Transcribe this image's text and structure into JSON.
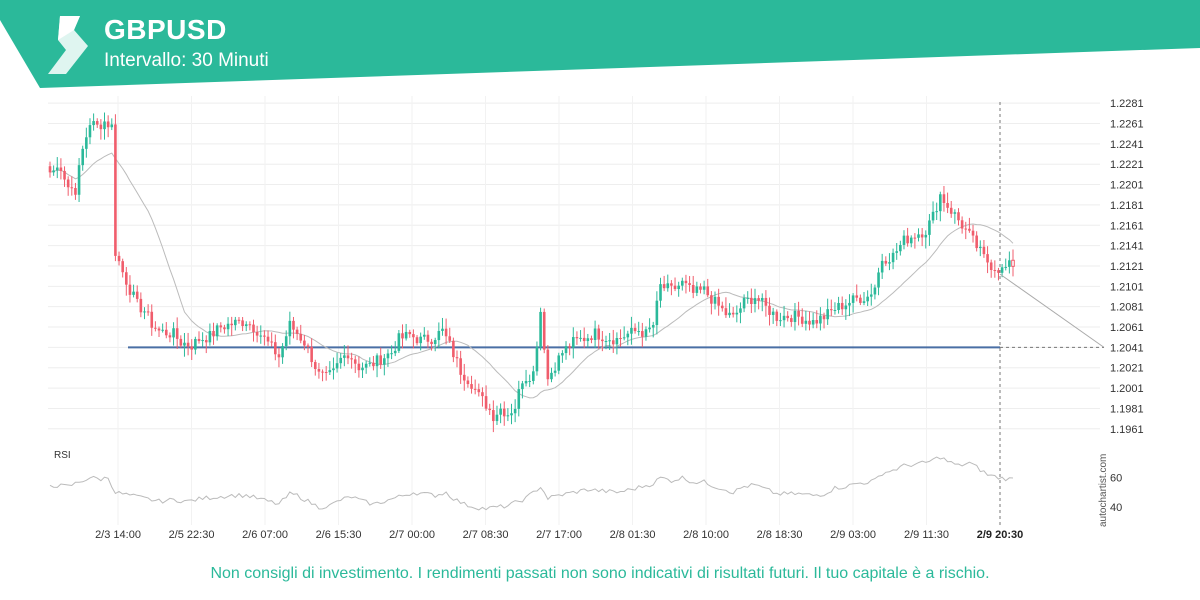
{
  "header": {
    "symbol": "GBPUSD",
    "interval": "Intervallo: 30 Minuti",
    "accent": "#2bb99a"
  },
  "disclaimer": "Non consigli di investimento. I rendimenti passati non sono indicativi di risultati futuri. Il tuo capitale è a rischio.",
  "watermark": "autochartist.com",
  "colors": {
    "up": "#2bb99a",
    "down": "#f05d6c",
    "level": "#4a6fa5",
    "ma": "#bbbbbb",
    "rsi": "#bbbbbb"
  },
  "chart_data": {
    "type": "candlestick",
    "y_ticks": [
      "1.2281",
      "1.2261",
      "1.2241",
      "1.2221",
      "1.2201",
      "1.2181",
      "1.2161",
      "1.2141",
      "1.2121",
      "1.2101",
      "1.2081",
      "1.2061",
      "1.2041",
      "1.2021",
      "1.2001",
      "1.1981",
      "1.1961"
    ],
    "ylim": [
      1.195,
      1.2288
    ],
    "x_ticks": [
      "2/3 14:00",
      "2/5 22:30",
      "2/6 07:00",
      "2/6 15:30",
      "2/7 00:00",
      "2/7 08:30",
      "2/7 17:00",
      "2/8 01:30",
      "2/8 10:00",
      "2/8 18:30",
      "2/9 03:00",
      "2/9 11:30"
    ],
    "x_current": "2/9 20:30",
    "support_level": 1.2041,
    "projection": {
      "from": 1.2113,
      "to": 1.2041
    },
    "close_anchors": [
      [
        0,
        1.2213
      ],
      [
        3,
        1.2219
      ],
      [
        5,
        1.2199
      ],
      [
        7,
        1.2196
      ],
      [
        9,
        1.2235
      ],
      [
        11,
        1.2262
      ],
      [
        13,
        1.2258
      ],
      [
        15,
        1.2263
      ],
      [
        17,
        1.2258
      ],
      [
        18,
        1.2135
      ],
      [
        20,
        1.2115
      ],
      [
        22,
        1.2098
      ],
      [
        24,
        1.2083
      ],
      [
        26,
        1.2077
      ],
      [
        28,
        1.2064
      ],
      [
        30,
        1.2057
      ],
      [
        34,
        1.2054
      ],
      [
        36,
        1.2046
      ],
      [
        39,
        1.2043
      ],
      [
        41,
        1.2049
      ],
      [
        44,
        1.2052
      ],
      [
        47,
        1.2061
      ],
      [
        51,
        1.2065
      ],
      [
        54,
        1.2067
      ],
      [
        57,
        1.2058
      ],
      [
        60,
        1.2045
      ],
      [
        63,
        1.2032
      ],
      [
        66,
        1.2063
      ],
      [
        68,
        1.2055
      ],
      [
        70,
        1.2046
      ],
      [
        72,
        1.2031
      ],
      [
        74,
        1.2014
      ],
      [
        76,
        1.2011
      ],
      [
        78,
        1.2016
      ],
      [
        80,
        1.2029
      ],
      [
        82,
        1.2036
      ],
      [
        85,
        1.2022
      ],
      [
        88,
        1.2023
      ],
      [
        91,
        1.203
      ],
      [
        94,
        1.2036
      ],
      [
        96,
        1.2049
      ],
      [
        99,
        1.2053
      ],
      [
        102,
        1.2048
      ],
      [
        105,
        1.205
      ],
      [
        108,
        1.2057
      ],
      [
        110,
        1.2043
      ],
      [
        113,
        1.2018
      ],
      [
        116,
        1.2006
      ],
      [
        118,
        1.1993
      ],
      [
        120,
        1.1985
      ],
      [
        122,
        1.1974
      ],
      [
        124,
        1.1981
      ],
      [
        126,
        1.1976
      ],
      [
        128,
        1.1983
      ],
      [
        130,
        1.201
      ],
      [
        133,
        1.2016
      ],
      [
        135,
        1.2077
      ],
      [
        137,
        1.201
      ],
      [
        139,
        1.2024
      ],
      [
        141,
        1.2036
      ],
      [
        144,
        1.2046
      ],
      [
        147,
        1.205
      ],
      [
        150,
        1.2055
      ],
      [
        153,
        1.2051
      ],
      [
        156,
        1.2049
      ],
      [
        159,
        1.2054
      ],
      [
        162,
        1.2058
      ],
      [
        164,
        1.2054
      ],
      [
        166,
        1.2063
      ],
      [
        168,
        1.2101
      ],
      [
        171,
        1.2097
      ],
      [
        174,
        1.2104
      ],
      [
        177,
        1.2094
      ],
      [
        180,
        1.2097
      ],
      [
        183,
        1.2085
      ],
      [
        186,
        1.2074
      ],
      [
        188,
        1.207
      ],
      [
        191,
        1.2085
      ],
      [
        194,
        1.2091
      ],
      [
        197,
        1.208
      ],
      [
        200,
        1.2071
      ],
      [
        203,
        1.2072
      ],
      [
        206,
        1.2071
      ],
      [
        210,
        1.2066
      ],
      [
        213,
        1.2071
      ],
      [
        216,
        1.2079
      ],
      [
        219,
        1.2084
      ],
      [
        222,
        1.2089
      ],
      [
        225,
        1.2091
      ],
      [
        227,
        1.2101
      ],
      [
        229,
        1.2128
      ],
      [
        232,
        1.2131
      ],
      [
        235,
        1.2146
      ],
      [
        238,
        1.2152
      ],
      [
        241,
        1.2156
      ],
      [
        243,
        1.217
      ],
      [
        245,
        1.2191
      ],
      [
        247,
        1.218
      ],
      [
        249,
        1.2171
      ],
      [
        251,
        1.2161
      ],
      [
        253,
        1.2151
      ],
      [
        255,
        1.214
      ],
      [
        257,
        1.2129
      ],
      [
        259,
        1.2122
      ],
      [
        262,
        1.2117
      ],
      [
        264,
        1.2121
      ]
    ],
    "rsi": {
      "label": "RSI",
      "y_ticks": [
        "60",
        "40"
      ],
      "ylim": [
        30,
        80
      ],
      "anchors": [
        [
          0,
          55
        ],
        [
          5,
          54
        ],
        [
          9,
          58
        ],
        [
          11,
          60
        ],
        [
          14,
          59
        ],
        [
          16,
          60
        ],
        [
          18,
          50
        ],
        [
          22,
          48
        ],
        [
          26,
          46
        ],
        [
          30,
          44
        ],
        [
          34,
          45
        ],
        [
          38,
          44
        ],
        [
          42,
          46
        ],
        [
          46,
          47
        ],
        [
          50,
          48
        ],
        [
          54,
          48
        ],
        [
          57,
          46
        ],
        [
          60,
          44
        ],
        [
          63,
          42
        ],
        [
          66,
          49
        ],
        [
          68,
          48
        ],
        [
          71,
          44
        ],
        [
          74,
          40
        ],
        [
          77,
          41
        ],
        [
          80,
          45
        ],
        [
          83,
          47
        ],
        [
          86,
          44
        ],
        [
          89,
          42
        ],
        [
          92,
          44
        ],
        [
          96,
          47
        ],
        [
          100,
          50
        ],
        [
          103,
          49
        ],
        [
          106,
          48
        ],
        [
          109,
          50
        ],
        [
          111,
          46
        ],
        [
          114,
          42
        ],
        [
          117,
          40
        ],
        [
          120,
          39
        ],
        [
          123,
          40
        ],
        [
          126,
          41
        ],
        [
          129,
          44
        ],
        [
          131,
          46
        ],
        [
          135,
          54
        ],
        [
          137,
          46
        ],
        [
          140,
          48
        ],
        [
          144,
          50
        ],
        [
          148,
          52
        ],
        [
          152,
          51
        ],
        [
          156,
          50
        ],
        [
          160,
          52
        ],
        [
          163,
          54
        ],
        [
          166,
          56
        ],
        [
          168,
          60
        ],
        [
          171,
          58
        ],
        [
          174,
          60
        ],
        [
          177,
          57
        ],
        [
          180,
          57
        ],
        [
          183,
          54
        ],
        [
          186,
          52
        ],
        [
          188,
          50
        ],
        [
          191,
          54
        ],
        [
          194,
          55
        ],
        [
          197,
          52
        ],
        [
          200,
          49
        ],
        [
          203,
          49
        ],
        [
          206,
          49
        ],
        [
          210,
          48
        ],
        [
          213,
          49
        ],
        [
          216,
          53
        ],
        [
          219,
          54
        ],
        [
          222,
          56
        ],
        [
          225,
          57
        ],
        [
          227,
          58
        ],
        [
          229,
          63
        ],
        [
          232,
          65
        ],
        [
          235,
          68
        ],
        [
          238,
          69
        ],
        [
          241,
          70
        ],
        [
          243,
          72
        ],
        [
          245,
          74
        ],
        [
          247,
          71
        ],
        [
          250,
          68
        ],
        [
          253,
          70
        ],
        [
          255,
          67
        ],
        [
          258,
          62
        ],
        [
          261,
          60
        ],
        [
          264,
          59
        ]
      ]
    }
  }
}
